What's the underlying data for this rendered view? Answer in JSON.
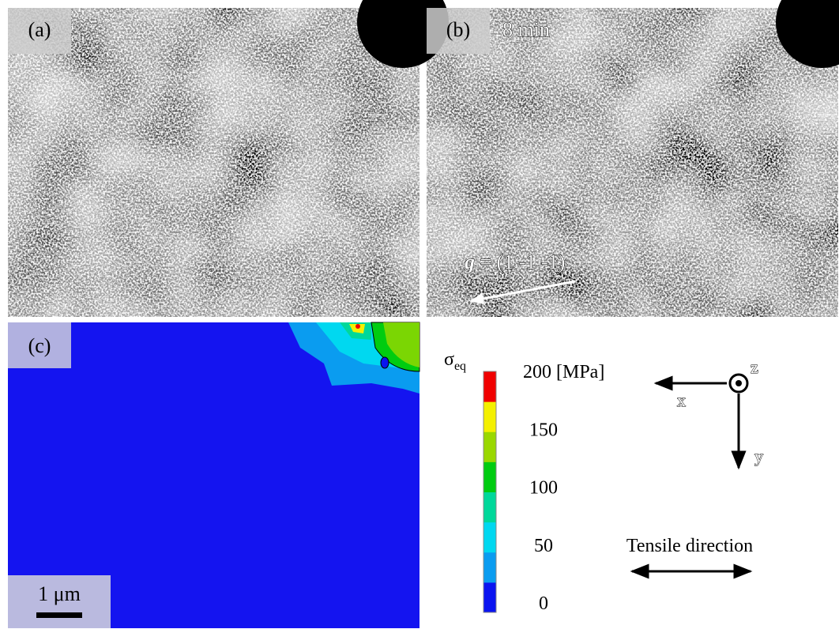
{
  "panels": {
    "a": {
      "label": "(a)"
    },
    "b": {
      "label": "(b)",
      "time": "8 min",
      "g_symbol": "g",
      "g_vector": "= (1 -1 -1)"
    },
    "c": {
      "label": "(c)",
      "scale_bar": "1 μm"
    }
  },
  "colorbar": {
    "symbol": "σ",
    "subscript": "eq",
    "lim": [
      0,
      200
    ],
    "ticks": [
      0,
      50,
      100,
      150,
      {
        "value": 200,
        "label": "200 [MPa]"
      }
    ],
    "colors": [
      "#0a14f0",
      "#0a9cf0",
      "#00d8f0",
      "#00d89a",
      "#00cc10",
      "#9ad800",
      "#f4f000",
      "#f00000"
    ]
  },
  "axes": {
    "x": "x",
    "y": "y",
    "z": "z",
    "tensile": "Tensile direction"
  }
}
